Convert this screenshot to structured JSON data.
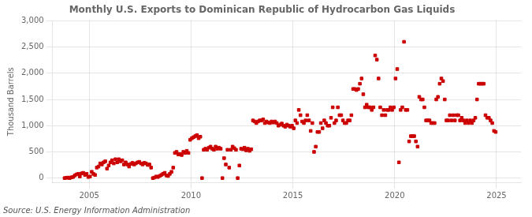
{
  "chart_data": {
    "type": "scatter",
    "title": "Monthly U.S. Exports to Dominican Republic of Hydrocarbon Gas Liquids",
    "ylabel": "Thousand Barrels",
    "annotation": "Source: U.S. Energy Information Administration",
    "color": "#cc0000",
    "marker": "square",
    "grid": true,
    "xlim": [
      2003.2,
      2026.2
    ],
    "xticks": [
      2005,
      2010,
      2015,
      2020,
      2025
    ],
    "ylim": [
      -80,
      3000
    ],
    "yticks": [
      0,
      500,
      {
        "value": 1000,
        "label": "1,000"
      },
      {
        "value": 1500,
        "label": "1,500"
      },
      {
        "value": 2000,
        "label": "2,000"
      },
      {
        "value": 2500,
        "label": "2,500"
      },
      {
        "value": 3000,
        "label": "3,000"
      }
    ],
    "x": [
      2003.7916666666667,
      2003.875,
      2003.9583333333333,
      2004.0416666666667,
      2004.125,
      2004.2083333333333,
      2004.2916666666667,
      2004.375,
      2004.4583333333333,
      2004.5416666666667,
      2004.625,
      2004.7083333333333,
      2004.7916666666667,
      2004.875,
      2004.9583333333333,
      2005.0416666666667,
      2005.125,
      2005.2083333333333,
      2005.2916666666667,
      2005.375,
      2005.4583333333333,
      2005.5416666666667,
      2005.625,
      2005.7083333333333,
      2005.7916666666667,
      2005.875,
      2005.9583333333333,
      2006.0416666666667,
      2006.125,
      2006.2083333333333,
      2006.2916666666667,
      2006.375,
      2006.4583333333333,
      2006.5416666666667,
      2006.625,
      2006.7083333333333,
      2006.7916666666667,
      2006.875,
      2006.9583333333333,
      2007.0416666666667,
      2007.125,
      2007.2083333333333,
      2007.2916666666667,
      2007.375,
      2007.4583333333333,
      2007.5416666666667,
      2007.625,
      2007.7083333333333,
      2007.7916666666667,
      2007.875,
      2007.9583333333333,
      2008.0416666666667,
      2008.125,
      2008.2083333333333,
      2008.2916666666667,
      2008.375,
      2008.4583333333333,
      2008.5416666666667,
      2008.625,
      2008.7083333333333,
      2008.7916666666667,
      2008.875,
      2008.9583333333333,
      2009.0416666666667,
      2009.125,
      2009.2083333333333,
      2009.2916666666667,
      2009.375,
      2009.4583333333333,
      2009.5416666666667,
      2009.625,
      2009.7083333333333,
      2009.7916666666667,
      2009.875,
      2009.9583333333333,
      2010.0416666666667,
      2010.125,
      2010.2083333333333,
      2010.2916666666667,
      2010.375,
      2010.4583333333333,
      2010.5416666666667,
      2010.625,
      2010.7083333333333,
      2010.7916666666667,
      2010.875,
      2010.9583333333333,
      2011.0416666666667,
      2011.125,
      2011.2083333333333,
      2011.2916666666667,
      2011.375,
      2011.4583333333333,
      2011.5416666666667,
      2011.625,
      2011.7083333333333,
      2011.7916666666667,
      2011.875,
      2011.9583333333333,
      2012.0416666666667,
      2012.125,
      2012.2083333333333,
      2012.2916666666667,
      2012.375,
      2012.4583333333333,
      2012.5416666666667,
      2012.625,
      2012.7083333333333,
      2012.7916666666667,
      2012.875,
      2012.9583333333333,
      2013.0416666666667,
      2013.125,
      2013.2083333333333,
      2013.2916666666667,
      2013.375,
      2013.4583333333333,
      2013.5416666666667,
      2013.625,
      2013.7083333333333,
      2013.7916666666667,
      2013.875,
      2013.9583333333333,
      2014.0416666666667,
      2014.125,
      2014.2083333333333,
      2014.2916666666667,
      2014.375,
      2014.4583333333333,
      2014.5416666666667,
      2014.625,
      2014.7083333333333,
      2014.7916666666667,
      2014.875,
      2014.9583333333333,
      2015.0416666666667,
      2015.125,
      2015.2083333333333,
      2015.2916666666667,
      2015.375,
      2015.4583333333333,
      2015.5416666666667,
      2015.625,
      2015.7083333333333,
      2015.7916666666667,
      2015.875,
      2015.9583333333333,
      2016.0416666666667,
      2016.125,
      2016.2083333333333,
      2016.2916666666667,
      2016.375,
      2016.4583333333333,
      2016.5416666666667,
      2016.625,
      2016.7083333333333,
      2016.7916666666667,
      2016.875,
      2016.9583333333333,
      2017.0416666666667,
      2017.125,
      2017.2083333333333,
      2017.2916666666667,
      2017.375,
      2017.4583333333333,
      2017.5416666666667,
      2017.625,
      2017.7083333333333,
      2017.7916666666667,
      2017.875,
      2017.9583333333333,
      2018.0416666666667,
      2018.125,
      2018.2083333333333,
      2018.2916666666667,
      2018.375,
      2018.4583333333333,
      2018.5416666666667,
      2018.625,
      2018.7083333333333,
      2018.7916666666667,
      2018.875,
      2018.9583333333333,
      2019.0416666666667,
      2019.125,
      2019.2083333333333,
      2019.2916666666667,
      2019.375,
      2019.4583333333333,
      2019.5416666666667,
      2019.625,
      2019.7083333333333,
      2019.7916666666667,
      2019.875,
      2019.9583333333333,
      2020.0416666666667,
      2020.125,
      2020.2083333333333,
      2020.2916666666667,
      2020.375,
      2020.4583333333333,
      2020.5416666666667,
      2020.625,
      2020.7083333333333,
      2020.7916666666667,
      2020.875,
      2020.9583333333333,
      2021.0416666666667,
      2021.125,
      2021.2083333333333,
      2021.2916666666667,
      2021.375,
      2021.4583333333333,
      2021.5416666666667,
      2021.625,
      2021.7083333333333,
      2021.7916666666667,
      2021.875,
      2021.9583333333333,
      2022.0416666666667,
      2022.125,
      2022.2083333333333,
      2022.2916666666667,
      2022.375,
      2022.4583333333333,
      2022.5416666666667,
      2022.625,
      2022.7083333333333,
      2022.7916666666667,
      2022.875,
      2022.9583333333333,
      2023.0416666666667,
      2023.125,
      2023.2083333333333,
      2023.2916666666667,
      2023.375,
      2023.4583333333333,
      2023.5416666666667,
      2023.625,
      2023.7083333333333,
      2023.7916666666667,
      2023.875,
      2023.9583333333333,
      2024.0416666666667,
      2024.125,
      2024.2083333333333,
      2024.2916666666667,
      2024.375,
      2024.4583333333333,
      2024.5416666666667,
      2024.625,
      2024.7083333333333,
      2024.7916666666667,
      2024.875,
      2024.9583333333333
    ],
    "values": [
      0,
      5,
      10,
      0,
      15,
      20,
      50,
      70,
      80,
      30,
      90,
      100,
      60,
      80,
      20,
      30,
      120,
      80,
      60,
      200,
      220,
      280,
      260,
      300,
      320,
      180,
      240,
      300,
      340,
      280,
      360,
      300,
      360,
      320,
      340,
      260,
      300,
      260,
      220,
      270,
      290,
      260,
      280,
      300,
      310,
      280,
      260,
      290,
      280,
      250,
      260,
      200,
      0,
      10,
      30,
      20,
      40,
      60,
      80,
      100,
      50,
      40,
      80,
      120,
      200,
      480,
      500,
      450,
      460,
      440,
      500,
      480,
      520,
      480,
      730,
      760,
      780,
      800,
      820,
      760,
      790,
      0,
      540,
      560,
      540,
      580,
      600,
      560,
      540,
      600,
      560,
      580,
      560,
      0,
      380,
      260,
      540,
      200,
      540,
      600,
      570,
      540,
      0,
      240,
      560,
      550,
      580,
      530,
      560,
      520,
      550,
      1100,
      1080,
      1050,
      1080,
      1100,
      1100,
      1120,
      1050,
      1080,
      1060,
      1050,
      1080,
      1060,
      1080,
      1050,
      1000,
      1020,
      1040,
      1000,
      980,
      1020,
      1000,
      980,
      1000,
      950,
      1100,
      1050,
      1300,
      1200,
      1080,
      1050,
      1100,
      1200,
      1100,
      900,
      1050,
      500,
      600,
      880,
      880,
      1050,
      950,
      1100,
      1050,
      1000,
      1000,
      1150,
      1350,
      1050,
      1100,
      1350,
      1200,
      1200,
      1100,
      1050,
      1050,
      1100,
      1100,
      1200,
      1700,
      1700,
      1680,
      1700,
      1800,
      1900,
      1600,
      1350,
      1400,
      1350,
      1350,
      1300,
      1350,
      2340,
      2260,
      1900,
      1350,
      1200,
      1300,
      1200,
      1300,
      1300,
      1350,
      1300,
      1350,
      1900,
      2080,
      300,
      1300,
      1350,
      2600,
      1300,
      1300,
      700,
      800,
      800,
      800,
      700,
      600,
      1550,
      1500,
      1500,
      1350,
      1100,
      1100,
      1100,
      1050,
      1050,
      1050,
      1500,
      1550,
      1800,
      1900,
      1850,
      1500,
      1100,
      1100,
      1200,
      1100,
      1200,
      1100,
      1200,
      1200,
      1100,
      1150,
      1100,
      1050,
      1100,
      1050,
      1100,
      1050,
      1100,
      1150,
      1500,
      1800,
      1800,
      1800,
      1800,
      1200,
      1150,
      1150,
      1100,
      1050,
      900,
      880
    ]
  }
}
